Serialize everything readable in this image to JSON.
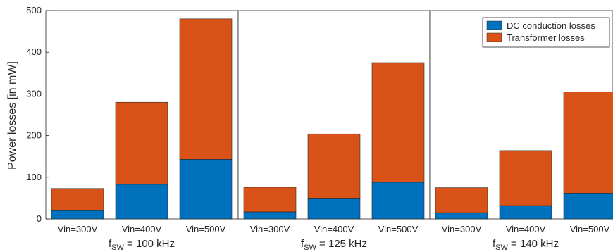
{
  "chart_data": {
    "type": "bar",
    "stacked": true,
    "ylabel": "Power losses [in mW]",
    "ylim": [
      0,
      500
    ],
    "yticks": [
      0,
      100,
      200,
      300,
      400,
      500
    ],
    "legend_position": "top-right",
    "series": [
      {
        "name": "DC conduction losses",
        "color": "#0072BD"
      },
      {
        "name": "Transformer losses",
        "color": "#D95319"
      }
    ],
    "groups": [
      {
        "label_prefix": "f",
        "label_sub": "SW",
        "label_suffix": " = 100 kHz",
        "categories": [
          "Vin=300V",
          "Vin=400V",
          "Vin=500V"
        ],
        "dc": [
          20,
          83,
          143
        ],
        "transformer": [
          53,
          197,
          337
        ]
      },
      {
        "label_prefix": "f",
        "label_sub": "SW",
        "label_suffix": " = 125 kHz",
        "categories": [
          "Vin=300V",
          "Vin=400V",
          "Vin=500V"
        ],
        "dc": [
          17,
          50,
          88
        ],
        "transformer": [
          59,
          154,
          287
        ]
      },
      {
        "label_prefix": "f",
        "label_sub": "SW",
        "label_suffix": " = 140 kHz",
        "categories": [
          "Vin=300V",
          "Vin=400V",
          "Vin=500V"
        ],
        "dc": [
          15,
          32,
          62
        ],
        "transformer": [
          60,
          132,
          243
        ]
      }
    ]
  }
}
